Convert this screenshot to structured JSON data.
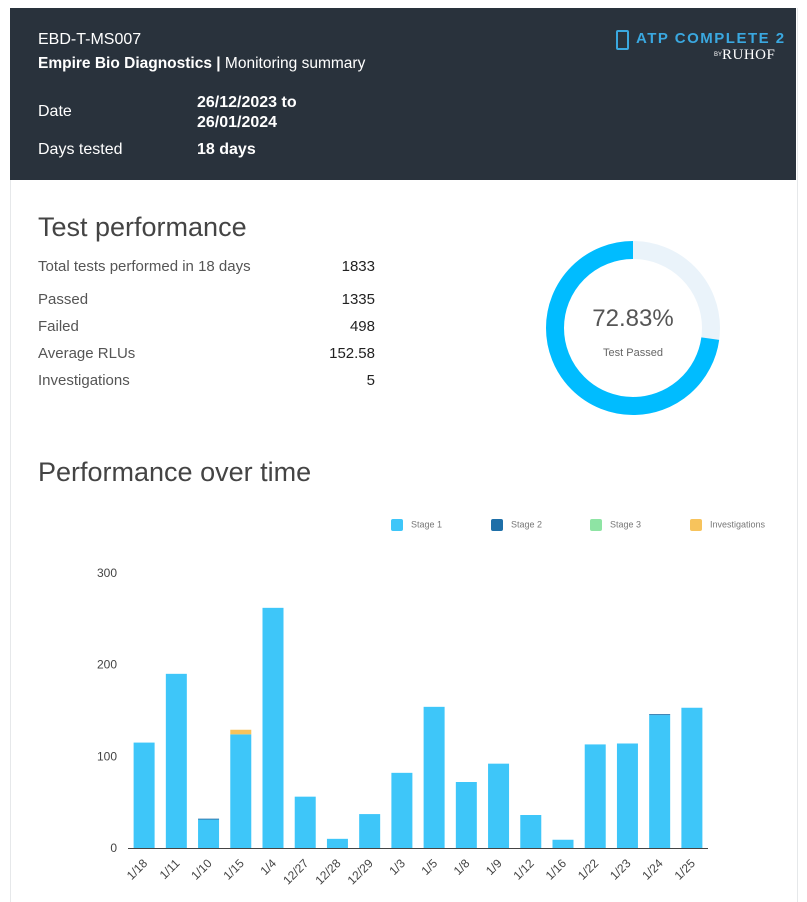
{
  "header": {
    "code": "EBD-T-MS007",
    "company": "Empire Bio Diagnostics |",
    "summary": " Monitoring summary",
    "date_label": "Date",
    "date_value_1": "26/12/2023 to",
    "date_value_2": "26/01/2024",
    "days_label": "Days tested",
    "days_value": "18 days",
    "logo_text": "ATP COMPLETE 2",
    "logo_by": "BY",
    "logo_brand": "RUHOF"
  },
  "performance": {
    "title": "Test performance",
    "stats": [
      {
        "label": "Total tests performed in 18 days",
        "value": "1833"
      },
      {
        "label": "Passed",
        "value": "1335"
      },
      {
        "label": "Failed",
        "value": "498"
      },
      {
        "label": "Average RLUs",
        "value": "152.58"
      },
      {
        "label": "Investigations",
        "value": "5"
      }
    ],
    "donut_value": "72.83%",
    "donut_label": "Test Passed",
    "donut_fraction": 0.7283,
    "donut_color": "#00bcff",
    "donut_track_color": "#eaf3fa"
  },
  "time": {
    "title": "Performance over time"
  },
  "chart_data": {
    "type": "bar",
    "stacked": true,
    "categories": [
      "1/18",
      "1/11",
      "1/10",
      "1/15",
      "1/4",
      "12/27",
      "12/28",
      "12/29",
      "1/3",
      "1/5",
      "1/8",
      "1/9",
      "1/12",
      "1/16",
      "1/22",
      "1/23",
      "1/24",
      "1/25"
    ],
    "series": [
      {
        "name": "Stage 1",
        "color": "#3ec6f9",
        "values": [
          115,
          190,
          31,
          124,
          262,
          56,
          10,
          37,
          82,
          154,
          72,
          92,
          36,
          9,
          113,
          114,
          145,
          153
        ]
      },
      {
        "name": "Stage 2",
        "color": "#1e6fa8",
        "values": [
          0,
          0,
          1,
          0,
          0,
          0,
          0,
          0,
          0,
          0,
          0,
          0,
          0,
          0,
          0,
          0,
          1,
          0
        ]
      },
      {
        "name": "Stage 3",
        "color": "#8ee4a4",
        "values": [
          0,
          0,
          0,
          0,
          0,
          0,
          0,
          0,
          0,
          0,
          0,
          0,
          0,
          0,
          0,
          0,
          0,
          0
        ]
      },
      {
        "name": "Investigations",
        "color": "#f7c35c",
        "values": [
          0,
          0,
          0,
          5,
          0,
          0,
          0,
          0,
          0,
          0,
          0,
          0,
          0,
          0,
          0,
          0,
          0,
          0
        ]
      }
    ],
    "ylim": [
      0,
      300
    ],
    "yticks": [
      "0",
      "100",
      "200",
      "300"
    ],
    "legend_position": "top-right",
    "grid": false
  }
}
